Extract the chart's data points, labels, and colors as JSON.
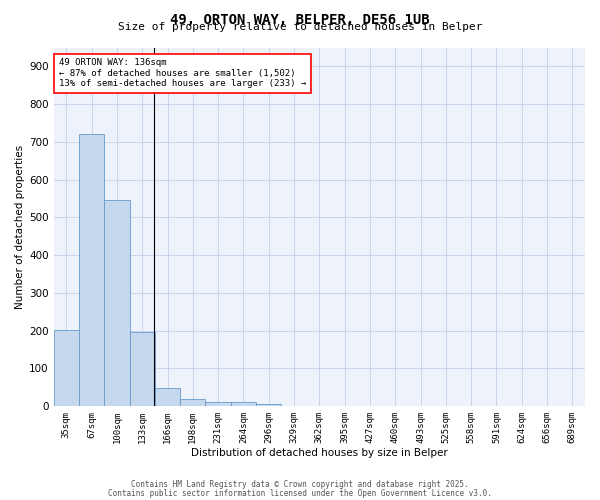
{
  "title_line1": "49, ORTON WAY, BELPER, DE56 1UB",
  "title_line2": "Size of property relative to detached houses in Belper",
  "xlabel": "Distribution of detached houses by size in Belper",
  "ylabel": "Number of detached properties",
  "categories": [
    "35sqm",
    "67sqm",
    "100sqm",
    "133sqm",
    "166sqm",
    "198sqm",
    "231sqm",
    "264sqm",
    "296sqm",
    "329sqm",
    "362sqm",
    "395sqm",
    "427sqm",
    "460sqm",
    "493sqm",
    "525sqm",
    "558sqm",
    "591sqm",
    "624sqm",
    "656sqm",
    "689sqm"
  ],
  "values": [
    202,
    720,
    545,
    196,
    47,
    20,
    12,
    10,
    5,
    0,
    0,
    0,
    0,
    0,
    0,
    0,
    0,
    0,
    0,
    0,
    0
  ],
  "bar_color": "#c5d8ee",
  "bar_edge_color": "#6699cc",
  "marker_index": 3,
  "annotation_line1": "49 ORTON WAY: 136sqm",
  "annotation_line2": "← 87% of detached houses are smaller (1,502)",
  "annotation_line3": "13% of semi-detached houses are larger (233) →",
  "ylim": [
    0,
    950
  ],
  "yticks": [
    0,
    100,
    200,
    300,
    400,
    500,
    600,
    700,
    800,
    900
  ],
  "background_color": "#eef2fb",
  "grid_color": "#c5cfe8",
  "footer_line1": "Contains HM Land Registry data © Crown copyright and database right 2025.",
  "footer_line2": "Contains public sector information licensed under the Open Government Licence v3.0."
}
